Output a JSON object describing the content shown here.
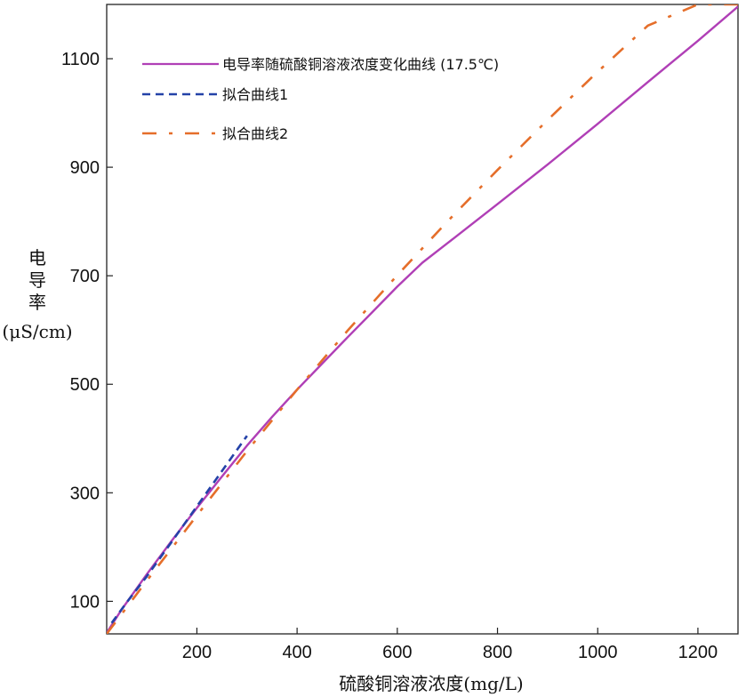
{
  "chart_data": {
    "type": "line",
    "xlabel": "硫酸铜溶液浓度(mg/L)",
    "ylabel_lines": [
      "电",
      "导",
      "率",
      "(μS/cm)"
    ],
    "xlim": [
      20,
      1280
    ],
    "ylim": [
      40,
      1200
    ],
    "xticks": [
      200,
      400,
      600,
      800,
      1000,
      1200
    ],
    "yticks": [
      100,
      300,
      500,
      700,
      900,
      1100
    ],
    "grid": false,
    "legend_position": "top-left",
    "series": [
      {
        "name": "电导率随硫酸铜溶液浓度变化曲线 (17.5℃)",
        "color": "#b03fb6",
        "style": "solid",
        "x": [
          20,
          50,
          100,
          150,
          200,
          250,
          300,
          350,
          400,
          450,
          500,
          550,
          600,
          650,
          700,
          800,
          900,
          1000,
          1100,
          1200,
          1280
        ],
        "y": [
          42,
          85,
          150,
          212,
          272,
          330,
          387,
          440,
          490,
          538,
          586,
          633,
          680,
          724,
          760,
          832,
          905,
          980,
          1057,
          1133,
          1196
        ]
      },
      {
        "name": "拟合曲线1",
        "color": "#2442a8",
        "style": "dashed",
        "x": [
          30,
          60,
          100,
          150,
          200,
          250,
          300
        ],
        "y": [
          60,
          98,
          146,
          210,
          275,
          340,
          405
        ]
      },
      {
        "name": "拟合曲线2",
        "color": "#e56e2a",
        "style": "dashdot",
        "x": [
          20,
          100,
          200,
          300,
          400,
          500,
          600,
          700,
          800,
          900,
          1000,
          1100,
          1200,
          1280
        ],
        "y": [
          40,
          138,
          258,
          377,
          490,
          598,
          701,
          800,
          895,
          987,
          1076,
          1161,
          1200,
          1200
        ]
      }
    ]
  }
}
